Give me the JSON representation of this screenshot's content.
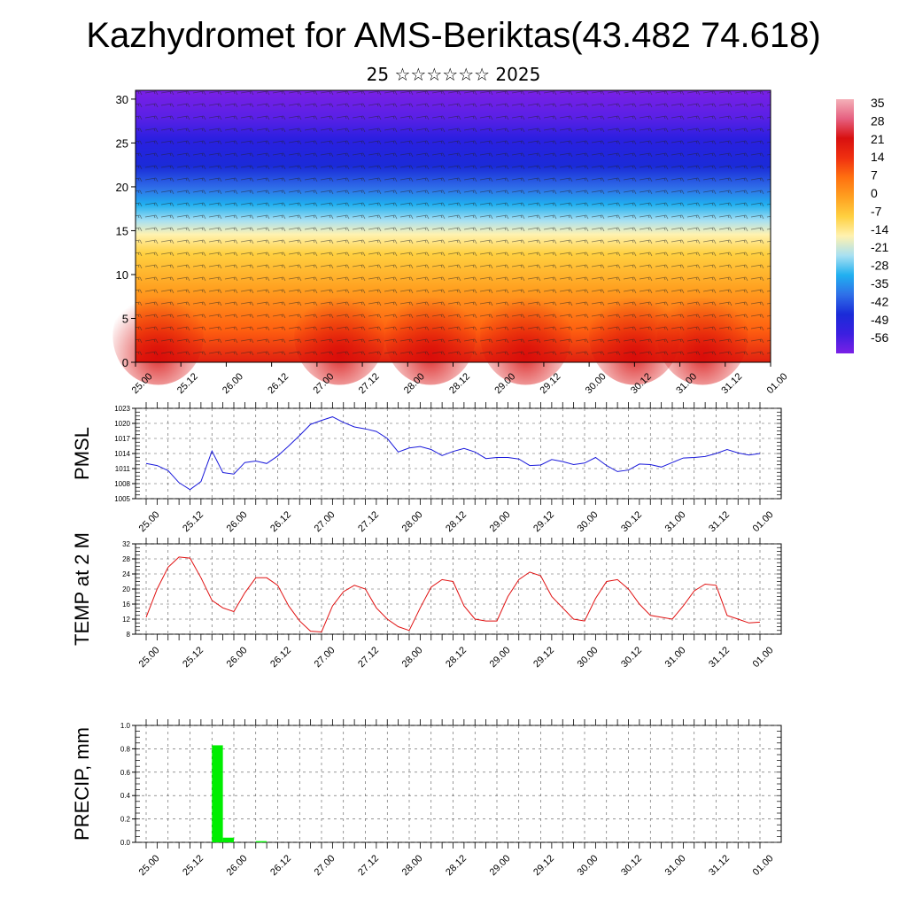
{
  "header": {
    "title": "Kazhydromet for AMS-Beriktas(43.482 74.618)",
    "subtitle": "25 ☆☆☆☆☆☆ 2025"
  },
  "time_axis_labels": [
    "25.00",
    "25.12",
    "26.00",
    "26.12",
    "27.00",
    "27.12",
    "28.00",
    "28.12",
    "29.00",
    "29.12",
    "30.00",
    "30.12",
    "31.00",
    "31.12",
    "01.00"
  ],
  "chart_data": [
    {
      "type": "heatmap",
      "description_id": "temperature-cross-section",
      "x_labels": [
        "25.00",
        "25.12",
        "26.00",
        "26.12",
        "27.00",
        "27.12",
        "28.00",
        "28.12",
        "29.00",
        "29.12",
        "30.00",
        "30.12",
        "31.00",
        "31.12",
        "01.00"
      ],
      "y_ticks": [
        0,
        5,
        10,
        15,
        20,
        25,
        30
      ],
      "ylim": [
        0,
        31
      ],
      "colorbar_labels": [
        "35",
        "28",
        "21",
        "14",
        "7",
        "0",
        "-7",
        "-14",
        "-21",
        "-28",
        "-35",
        "-42",
        "-49",
        "-56"
      ],
      "colorbar_range": [
        -63,
        42
      ],
      "colormap": [
        "#7a20e6",
        "#3b1fe0",
        "#1a2bd8",
        "#2f6fe8",
        "#20b0f0",
        "#a8e0f2",
        "#fff2b0",
        "#ffd040",
        "#ffa020",
        "#ff7010",
        "#f03010",
        "#d81010",
        "#e66080",
        "#f4b0b8"
      ],
      "overlay": "wind barbs"
    },
    {
      "type": "line",
      "ylabel": "PMSL",
      "ylim": [
        1005,
        1023
      ],
      "y_ticks": [
        1005,
        1008,
        1011,
        1014,
        1017,
        1020,
        1023
      ],
      "color": "#1a1adb",
      "x_hours": [
        0,
        3,
        6,
        9,
        12,
        15,
        18,
        21,
        24,
        27,
        30,
        33,
        36,
        39,
        42,
        45,
        48,
        51,
        54,
        57,
        60,
        63,
        66,
        69,
        72,
        75,
        78,
        81,
        84,
        87,
        90,
        93,
        96,
        99,
        102,
        105,
        108,
        111,
        114,
        117,
        120,
        123,
        126,
        129,
        132,
        135,
        138,
        141,
        144,
        147,
        150,
        153,
        156,
        159,
        162,
        165,
        168
      ],
      "values": [
        1012,
        1011.6,
        1010.6,
        1008.2,
        1006.8,
        1008.4,
        1014.5,
        1010.2,
        1009.9,
        1012.2,
        1012.5,
        1012.0,
        1013.5,
        1015.5,
        1017.6,
        1019.8,
        1020.6,
        1021.3,
        1020.2,
        1019.3,
        1018.9,
        1018.4,
        1017.0,
        1014.3,
        1015.1,
        1015.4,
        1014.8,
        1013.6,
        1014.4,
        1015.0,
        1014.3,
        1013.0,
        1013.2,
        1013.2,
        1012.9,
        1011.6,
        1011.7,
        1012.8,
        1012.4,
        1011.8,
        1012.1,
        1013.2,
        1011.6,
        1010.4,
        1010.7,
        1011.9,
        1011.8,
        1011.3,
        1012.2,
        1013.1,
        1013.2,
        1013.4,
        1014.0,
        1014.8,
        1014.1,
        1013.7,
        1014.0
      ]
    },
    {
      "type": "line",
      "ylabel": "TEMP at 2 M",
      "ylim": [
        8,
        32
      ],
      "y_ticks": [
        8,
        12,
        16,
        20,
        24,
        28,
        32
      ],
      "color": "#e01010",
      "x_hours": [
        0,
        3,
        6,
        9,
        12,
        15,
        18,
        21,
        24,
        27,
        30,
        33,
        36,
        39,
        42,
        45,
        48,
        51,
        54,
        57,
        60,
        63,
        66,
        69,
        72,
        75,
        78,
        81,
        84,
        87,
        90,
        93,
        96,
        99,
        102,
        105,
        108,
        111,
        114,
        117,
        120,
        123,
        126,
        129,
        132,
        135,
        138,
        141,
        144,
        147,
        150,
        153,
        156,
        159,
        162,
        165,
        168
      ],
      "values": [
        12.5,
        20,
        25.8,
        28.5,
        28.2,
        23,
        17,
        15,
        14,
        19,
        23,
        23,
        21,
        15.5,
        11.5,
        8.8,
        8.6,
        15.5,
        19.3,
        21,
        20,
        15,
        12,
        10,
        9,
        15,
        20.5,
        22.5,
        22,
        15.5,
        12,
        11.5,
        11.5,
        18,
        22.5,
        24.5,
        23.5,
        18,
        15,
        12,
        11.5,
        17.5,
        22,
        22.5,
        20,
        16,
        13,
        12.5,
        12,
        15.5,
        19.5,
        21.3,
        21,
        13,
        12,
        11,
        11.2
      ]
    },
    {
      "type": "bar",
      "ylabel": "PRECIP, mm",
      "ylim": [
        0,
        1.0
      ],
      "y_ticks": [
        "0.0",
        "0.2",
        "0.4",
        "0.6",
        "0.8",
        "1.0"
      ],
      "color": "#00ee00",
      "x_hours": [
        18,
        21,
        30
      ],
      "values": [
        0.83,
        0.04,
        0.01
      ]
    }
  ]
}
